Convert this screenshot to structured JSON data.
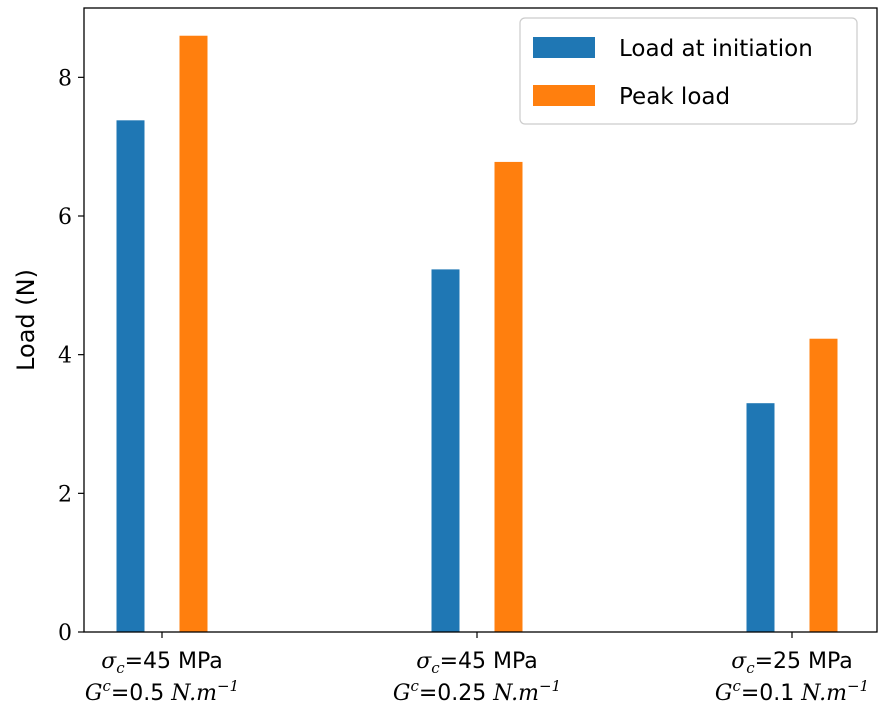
{
  "chart_data": {
    "type": "bar",
    "ylabel": "Load (N)",
    "xlabel": "",
    "ylim": [
      0,
      9
    ],
    "yticks": [
      0,
      2,
      4,
      6,
      8
    ],
    "grid": false,
    "legend_position": "top-right",
    "categories": [
      {
        "line1": {
          "sym": "σ",
          "sub": "c",
          "rest": "=45 MPa"
        },
        "line2": {
          "sym": "G",
          "sup": "c",
          "rest": "=0.5 ",
          "unit": "N.m",
          "exp": "−1"
        }
      },
      {
        "line1": {
          "sym": "σ",
          "sub": "c",
          "rest": "=45 MPa"
        },
        "line2": {
          "sym": "G",
          "sup": "c",
          "rest": "=0.25 ",
          "unit": "N.m",
          "exp": "−1"
        }
      },
      {
        "line1": {
          "sym": "σ",
          "sub": "c",
          "rest": "=25 MPa"
        },
        "line2": {
          "sym": "G",
          "sup": "c",
          "rest": "=0.1 ",
          "unit": "N.m",
          "exp": "−1"
        }
      }
    ],
    "series": [
      {
        "name": "Load at initiation",
        "color": "#1f77b4",
        "values": [
          7.38,
          5.23,
          3.3
        ]
      },
      {
        "name": "Peak load",
        "color": "#ff7f0e",
        "values": [
          8.6,
          6.78,
          4.23
        ]
      }
    ]
  }
}
